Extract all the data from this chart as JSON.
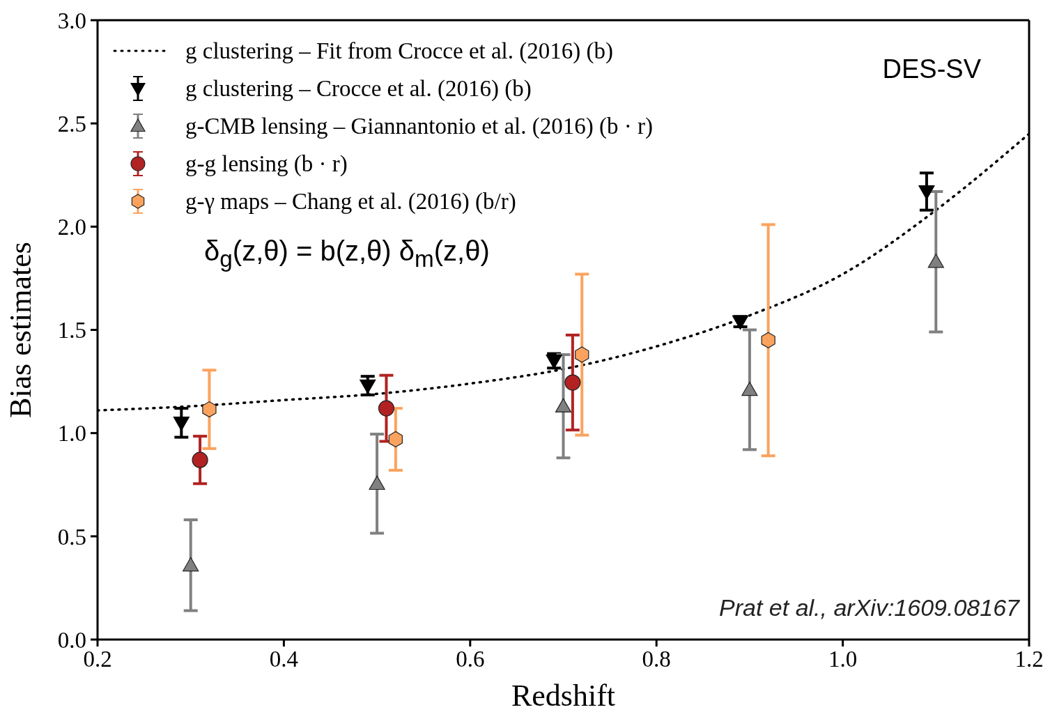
{
  "chart_data": {
    "type": "scatter",
    "xlabel": "Redshift",
    "ylabel": "Bias estimates",
    "xlim": [
      0.2,
      1.2
    ],
    "xticks": [
      0.2,
      0.4,
      0.6,
      0.8,
      {
        "value": 1.0,
        "label": "1.0"
      },
      1.2
    ],
    "ylim": [
      0,
      3
    ],
    "yticks": [
      {
        "value": 0,
        "label": "0.0"
      },
      0.5,
      {
        "value": 1,
        "label": "1.0"
      },
      1.5,
      {
        "value": 2,
        "label": "2.0"
      },
      2.5,
      {
        "value": 3,
        "label": "3.0"
      }
    ],
    "legend": "top left",
    "annotations": [
      "DES-SV",
      "δ$_{g}$(z,θ) = b(z,θ) δ$_{m}$(z,θ)",
      "Prat et al., arXiv:1609.08167"
    ],
    "series": [
      {
        "name": "g clustering – Fit from Crocce et al. (2016) (b)",
        "type": "line",
        "color": "#000000",
        "line_style": "dotted",
        "marker": "none",
        "x": [
          0.2,
          0.3,
          0.4,
          0.5,
          0.6,
          0.7,
          0.8,
          0.9,
          1.0,
          1.1,
          1.2
        ],
        "values": [
          1.11,
          1.13,
          1.16,
          1.19,
          1.24,
          1.31,
          1.42,
          1.57,
          1.77,
          2.08,
          2.45
        ]
      },
      {
        "name": "g clustering – Crocce et al. (2016) (b)",
        "color": "#000000",
        "marker": "triangle_down",
        "x": [
          0.29,
          0.49,
          0.69,
          0.89,
          1.09
        ],
        "values": [
          1.05,
          1.23,
          1.35,
          1.54,
          2.17
        ],
        "errors": [
          0.07,
          0.045,
          0.035,
          0.025,
          0.09
        ]
      },
      {
        "name": "g-CMB lensing – Giannantonio et al. (2016) (b · r)",
        "color": "#808080",
        "marker": "triangle",
        "x": [
          0.3,
          0.5,
          0.7,
          0.9,
          1.1
        ],
        "values": [
          0.36,
          0.755,
          1.13,
          1.21,
          1.83
        ],
        "errors": [
          0.22,
          0.24,
          0.25,
          0.29,
          0.34
        ]
      },
      {
        "name": "g-g lensing (b · r)",
        "color": "#b22222",
        "marker": "circle",
        "x": [
          0.31,
          0.51,
          0.71
        ],
        "values": [
          0.87,
          1.12,
          1.245
        ],
        "errors": [
          0.115,
          0.16,
          0.23
        ]
      },
      {
        "name": "g-γ maps – Chang et al. (2016) (b/r)",
        "color": "#fba35e",
        "x": [
          0.32,
          0.52,
          0.72,
          0.92
        ],
        "values": [
          1.115,
          0.97,
          1.38,
          1.45
        ],
        "errors": [
          0.19,
          0.15,
          0.39,
          0.56
        ]
      }
    ]
  }
}
